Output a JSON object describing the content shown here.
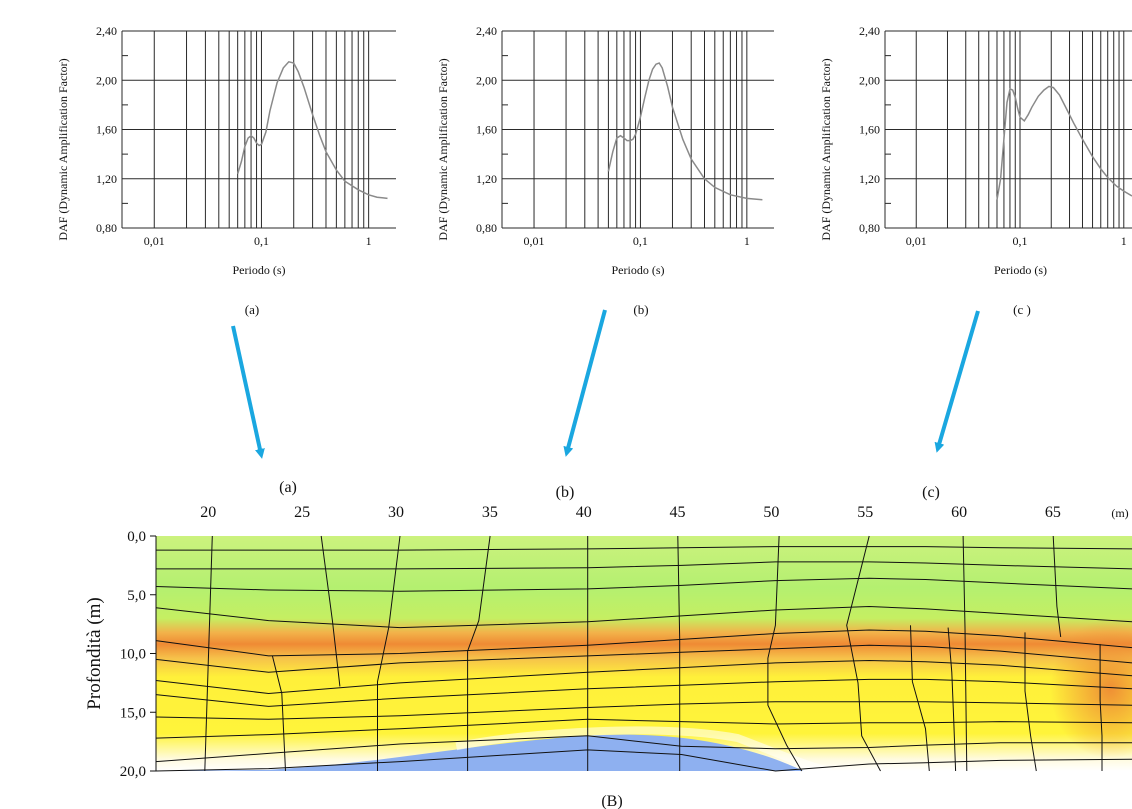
{
  "colors": {
    "curve": "#8a8a8a",
    "grid": "#2a2a2a",
    "arrow": "#1aa7e0",
    "section_green": "#b9f27a",
    "section_orange": "#f08a2c",
    "section_yellow": "#fff23a",
    "section_blue": "#8fb0f0"
  },
  "chart_data": [
    {
      "type": "line",
      "id": "a",
      "label": "(a)",
      "xlabel": "Periodo (s)",
      "ylabel": "DAF (Dynamic Amplification Factor)",
      "xscale": "log",
      "xlim": [
        0.005,
        1.8
      ],
      "ylim": [
        0.8,
        2.4
      ],
      "x_ticks": [
        "0,01",
        "0,1",
        "1"
      ],
      "y_ticks": [
        "0,80",
        "1,20",
        "1,60",
        "2,00",
        "2,40"
      ],
      "grid": true,
      "series": [
        {
          "x": [
            0.06,
            0.065,
            0.07,
            0.075,
            0.08,
            0.085,
            0.09,
            0.095,
            0.1,
            0.11,
            0.12,
            0.14,
            0.16,
            0.18,
            0.2,
            0.22,
            0.25,
            0.3,
            0.35,
            0.4,
            0.5,
            0.6,
            0.8,
            1.0,
            1.2,
            1.5
          ],
          "y": [
            1.24,
            1.34,
            1.46,
            1.53,
            1.55,
            1.53,
            1.49,
            1.47,
            1.48,
            1.58,
            1.75,
            1.98,
            2.1,
            2.15,
            2.14,
            2.07,
            1.94,
            1.72,
            1.55,
            1.42,
            1.27,
            1.18,
            1.11,
            1.07,
            1.05,
            1.04
          ]
        }
      ]
    },
    {
      "type": "line",
      "id": "b",
      "label": "(b)",
      "xlabel": "Periodo (s)",
      "ylabel": "DAF (Dynamic Amplification Factor)",
      "xscale": "log",
      "xlim": [
        0.005,
        1.8
      ],
      "ylim": [
        0.8,
        2.4
      ],
      "x_ticks": [
        "0,01",
        "0,1",
        "1"
      ],
      "y_ticks": [
        "0,80",
        "1,20",
        "1,60",
        "2,00",
        "2,40"
      ],
      "grid": true,
      "series": [
        {
          "x": [
            0.05,
            0.055,
            0.06,
            0.065,
            0.07,
            0.075,
            0.08,
            0.085,
            0.09,
            0.1,
            0.11,
            0.12,
            0.13,
            0.14,
            0.15,
            0.16,
            0.18,
            0.2,
            0.25,
            0.3,
            0.4,
            0.5,
            0.7,
            1.0,
            1.4
          ],
          "y": [
            1.26,
            1.42,
            1.53,
            1.55,
            1.53,
            1.51,
            1.51,
            1.52,
            1.56,
            1.7,
            1.86,
            2.0,
            2.09,
            2.13,
            2.14,
            2.1,
            1.95,
            1.78,
            1.52,
            1.36,
            1.2,
            1.13,
            1.07,
            1.04,
            1.03
          ]
        }
      ]
    },
    {
      "type": "line",
      "id": "c",
      "label": "(c )",
      "xlabel": "Periodo (s)",
      "ylabel": "DAF (Dynamic Amplification Factor)",
      "xscale": "log",
      "xlim": [
        0.005,
        1.2
      ],
      "ylim": [
        0.8,
        2.4
      ],
      "x_ticks": [
        "0,01",
        "0,1",
        "1"
      ],
      "y_ticks": [
        "0,80",
        "1,20",
        "1,60",
        "2,00",
        "2,40"
      ],
      "grid": true,
      "series": [
        {
          "x": [
            0.06,
            0.065,
            0.07,
            0.075,
            0.08,
            0.085,
            0.09,
            0.095,
            0.1,
            0.11,
            0.12,
            0.13,
            0.15,
            0.17,
            0.19,
            0.21,
            0.24,
            0.28,
            0.33,
            0.4,
            0.5,
            0.6,
            0.7,
            0.85,
            1.0,
            1.2
          ],
          "y": [
            1.03,
            1.2,
            1.52,
            1.82,
            1.93,
            1.92,
            1.86,
            1.77,
            1.7,
            1.67,
            1.72,
            1.78,
            1.87,
            1.92,
            1.95,
            1.94,
            1.88,
            1.77,
            1.65,
            1.52,
            1.38,
            1.28,
            1.21,
            1.14,
            1.1,
            1.06
          ]
        }
      ]
    },
    {
      "type": "heatmap",
      "id": "B",
      "label": "(B)",
      "ylabel": "Profondità (m)",
      "x_unit": "(m)",
      "xlim": [
        17,
        69
      ],
      "ylim": [
        20,
        0
      ],
      "x_ticks": [
        "20",
        "25",
        "30",
        "35",
        "40",
        "45",
        "50",
        "55",
        "60",
        "65"
      ],
      "y_ticks": [
        "0,0",
        "5,0",
        "10,0",
        "15,0",
        "20,0"
      ],
      "markers": [
        {
          "label": "(a)",
          "x": 22
        },
        {
          "label": "(b)",
          "x": 38
        },
        {
          "label": "(c)",
          "x": 59
        }
      ],
      "contour_x": [
        17,
        23,
        30,
        40,
        45,
        50,
        55,
        58,
        62,
        69
      ],
      "contours_depth": [
        [
          1.2,
          1.2,
          1.2,
          1.1,
          1.0,
          0.9,
          0.9,
          0.9,
          1.0,
          1.1
        ],
        [
          2.8,
          2.8,
          2.8,
          2.7,
          2.5,
          2.2,
          2.2,
          2.3,
          2.5,
          2.8
        ],
        [
          4.3,
          4.6,
          4.7,
          4.5,
          4.2,
          3.8,
          3.6,
          3.7,
          4.0,
          4.5
        ],
        [
          6.1,
          7.2,
          7.8,
          7.3,
          6.8,
          6.3,
          6.0,
          6.2,
          6.6,
          7.3
        ],
        [
          8.9,
          10.2,
          10.0,
          9.3,
          8.8,
          8.3,
          8.0,
          8.1,
          8.5,
          9.5
        ],
        [
          10.5,
          11.6,
          10.8,
          10.2,
          9.9,
          9.6,
          9.3,
          9.4,
          9.8,
          10.8
        ],
        [
          12.3,
          13.4,
          12.5,
          11.6,
          11.2,
          10.8,
          10.6,
          10.7,
          11.0,
          11.9
        ],
        [
          13.5,
          14.5,
          13.8,
          13.0,
          12.7,
          12.4,
          12.2,
          12.2,
          12.4,
          13.0
        ],
        [
          15.4,
          15.6,
          15.3,
          14.6,
          14.3,
          14.1,
          14.1,
          14.1,
          14.2,
          14.4
        ],
        [
          17.2,
          16.9,
          16.4,
          15.6,
          15.8,
          16.0,
          15.9,
          15.9,
          15.8,
          15.9
        ],
        [
          19.2,
          18.5,
          17.7,
          17.0,
          17.9,
          18.1,
          18.0,
          17.8,
          17.6,
          17.6
        ],
        [
          20.0,
          19.8,
          19.2,
          18.2,
          18.6,
          20.0,
          19.4,
          19.3,
          19.1,
          19.0
        ]
      ]
    }
  ]
}
